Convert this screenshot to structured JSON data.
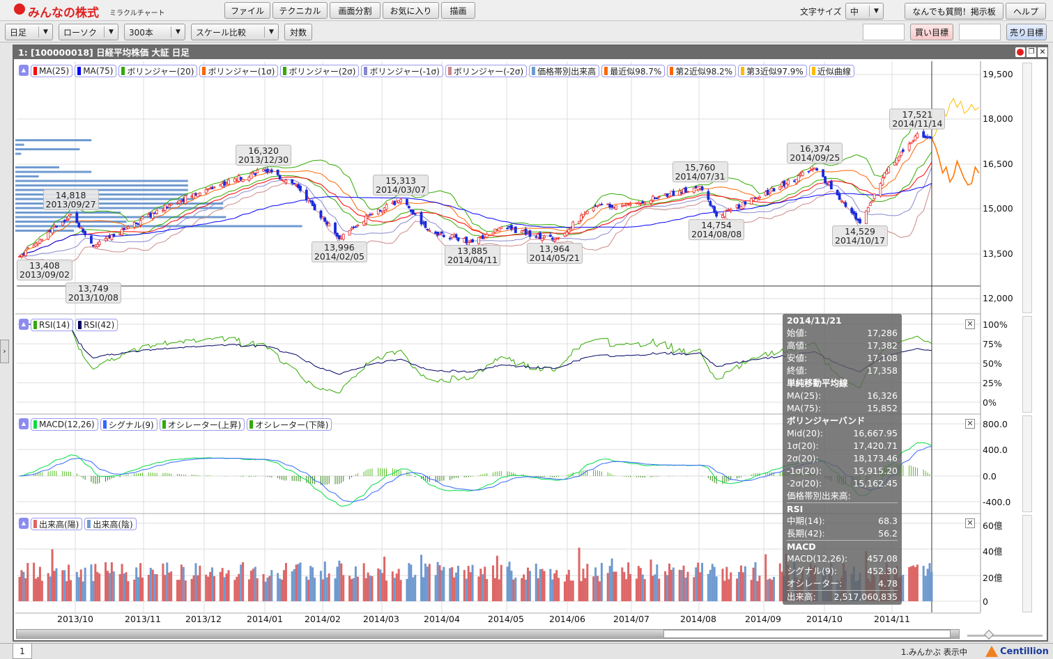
{
  "app": {
    "logo": "みんなの株式",
    "logo_sub": "ミラクルチャート"
  },
  "menu": [
    "ファイル",
    "テクニカル",
    "画面分割",
    "お気に入り",
    "描画"
  ],
  "font_size": {
    "label": "文字サイズ",
    "value": "中"
  },
  "top_right_buttons": [
    "なんでも質問！掲示板",
    "ヘルプ"
  ],
  "toolbar": {
    "period": "日足",
    "chart_type": "ローソク",
    "bars": "300本",
    "scale": "スケール比較",
    "log_button": "対数",
    "buy_target_input": "",
    "buy_target": "買い目標",
    "sell_target_input": "",
    "sell_target": "売り目標"
  },
  "window": {
    "title": "1:  [100000018] 日経平均株価 大証 日足"
  },
  "legends": {
    "price": [
      {
        "label": "MA(25)",
        "color": "#ff0000"
      },
      {
        "label": "MA(75)",
        "color": "#0000ff"
      },
      {
        "label": "ボリンジャー(20)",
        "color": "#33aa00"
      },
      {
        "label": "ボリンジャー(1σ)",
        "color": "#ff6600"
      },
      {
        "label": "ボリンジャー(2σ)",
        "color": "#33aa00"
      },
      {
        "label": "ボリンジャー(-1σ)",
        "color": "#8888cc"
      },
      {
        "label": "ボリンジャー(-2σ)",
        "color": "#cc8888"
      },
      {
        "label": "価格帯別出来高",
        "color": "#6f9ad0"
      },
      {
        "label": "最近似98.7%",
        "color": "#ff6600"
      },
      {
        "label": "第2近似98.2%",
        "color": "#ff6600"
      },
      {
        "label": "第3近似97.9%",
        "color": "#ffbb00"
      },
      {
        "label": "近似曲線",
        "color": "#ffbb00"
      }
    ],
    "rsi": [
      {
        "label": "RSI(14)",
        "color": "#33aa00"
      },
      {
        "label": "RSI(42)",
        "color": "#000066"
      }
    ],
    "macd": [
      {
        "label": "MACD(12,26)",
        "color": "#00dd44"
      },
      {
        "label": "シグナル(9)",
        "color": "#3366ff"
      },
      {
        "label": "オシレーター(上昇)",
        "color": "#33aa00"
      },
      {
        "label": "オシレーター(下降)",
        "color": "#33aa00"
      }
    ],
    "volume": [
      {
        "label": "出来高(陽)",
        "color": "#dd6666"
      },
      {
        "label": "出来高(陰)",
        "color": "#6f9ad0"
      }
    ]
  },
  "axes": {
    "price": [
      "19,500",
      "18,000",
      "16,500",
      "15,000",
      "13,500",
      "12,000"
    ],
    "rsi": [
      "100%",
      "75%",
      "50%",
      "25%",
      "0%"
    ],
    "macd": [
      "800.0",
      "400.0",
      "0.0",
      "-400.0"
    ],
    "volume": [
      "60億",
      "40億",
      "20億",
      "0"
    ],
    "x": [
      "2013/10",
      "2013/11",
      "2013/12",
      "2014/01",
      "2014/02",
      "2014/03",
      "2014/04",
      "2014/05",
      "2014/06",
      "2014/07",
      "2014/08",
      "2014/09",
      "2014/10",
      "2014/11"
    ]
  },
  "chart_data": {
    "type": "candlestick",
    "date_range": [
      "2013/09/02",
      "2014/11/21"
    ],
    "price_ylim": [
      12000,
      19500
    ],
    "close_anchors": [
      [
        "2013-09-02",
        13408
      ],
      [
        "2013-09-27",
        14818
      ],
      [
        "2013-10-08",
        13749
      ],
      [
        "2013-10-25",
        14400
      ],
      [
        "2013-11-15",
        15165
      ],
      [
        "2013-12-02",
        15650
      ],
      [
        "2013-12-30",
        16320
      ],
      [
        "2014-01-15",
        15800
      ],
      [
        "2014-02-05",
        13996
      ],
      [
        "2014-02-20",
        14800
      ],
      [
        "2014-03-07",
        15313
      ],
      [
        "2014-03-20",
        14300
      ],
      [
        "2014-04-11",
        13885
      ],
      [
        "2014-04-25",
        14400
      ],
      [
        "2014-05-21",
        13964
      ],
      [
        "2014-06-10",
        15100
      ],
      [
        "2014-06-30",
        15200
      ],
      [
        "2014-07-31",
        15760
      ],
      [
        "2014-08-08",
        14754
      ],
      [
        "2014-08-29",
        15400
      ],
      [
        "2014-09-25",
        16374
      ],
      [
        "2014-10-17",
        14529
      ],
      [
        "2014-10-31",
        16400
      ],
      [
        "2014-11-14",
        17521
      ],
      [
        "2014-11-21",
        17358
      ]
    ],
    "annotations": [
      {
        "price": "13,408",
        "date": "2013/09/02",
        "pos": "below"
      },
      {
        "price": "14,818",
        "date": "2013/09/27",
        "pos": "above"
      },
      {
        "price": "13,749",
        "date": "2013/10/08",
        "pos": "below"
      },
      {
        "price": "16,320",
        "date": "2013/12/30",
        "pos": "above"
      },
      {
        "price": "13,996",
        "date": "2014/02/05",
        "pos": "below"
      },
      {
        "price": "15,313",
        "date": "2014/03/07",
        "pos": "above"
      },
      {
        "price": "13,885",
        "date": "2014/04/11",
        "pos": "below"
      },
      {
        "price": "13,964",
        "date": "2014/05/21",
        "pos": "below"
      },
      {
        "price": "15,760",
        "date": "2014/07/31",
        "pos": "above"
      },
      {
        "price": "14,754",
        "date": "2014/08/08",
        "pos": "below"
      },
      {
        "price": "16,374",
        "date": "2014/09/25",
        "pos": "above"
      },
      {
        "price": "14,529",
        "date": "2014/10/17",
        "pos": "below"
      },
      {
        "price": "17,521",
        "date": "2014/11/14",
        "pos": "above"
      }
    ],
    "forecast_best": [
      17358,
      17100,
      16700,
      16200,
      16400,
      15900,
      16100,
      16600,
      16300,
      16000,
      15800,
      15850,
      16400,
      16200
    ],
    "forecast_third": [
      17358,
      17500,
      17900,
      18300,
      18100,
      18500,
      18700,
      18400,
      18600,
      18200,
      18300,
      18500,
      18300,
      18400
    ],
    "volume_by_price": [
      0.26,
      0.03,
      0.22,
      0.02,
      0,
      0,
      0.15,
      0.26,
      0.08,
      0.59,
      0.59,
      0.59,
      0.59,
      0.61,
      0.71,
      0.71,
      0.36,
      0.72,
      0.38,
      0.98,
      0.2
    ]
  },
  "tooltip": {
    "date": "2014/11/21",
    "ohlc": [
      [
        "始値:",
        "17,286"
      ],
      [
        "高値:",
        "17,382"
      ],
      [
        "安値:",
        "17,108"
      ],
      [
        "終値:",
        "17,358"
      ]
    ],
    "ma_title": "単純移動平均線",
    "ma": [
      [
        "MA(25):",
        "16,326"
      ],
      [
        "MA(75):",
        "15,852"
      ]
    ],
    "bb_title": "ボリンジャーバンド",
    "bb": [
      [
        "Mid(20):",
        "16,667.95"
      ],
      [
        "1σ(20):",
        "17,420.71"
      ],
      [
        "2σ(20):",
        "18,173.46"
      ],
      [
        "-1σ(20):",
        "15,915.20"
      ],
      [
        "-2σ(20):",
        "15,162.45"
      ]
    ],
    "vbp": "価格帯別出来高:",
    "rsi_title": "RSI",
    "rsi": [
      [
        "中期(14):",
        "68.3"
      ],
      [
        "長期(42):",
        "56.2"
      ]
    ],
    "macd_title": "MACD",
    "macd": [
      [
        "MACD(12,26):",
        "457.08"
      ],
      [
        "シグナル(9):",
        "452.30"
      ],
      [
        "オシレーター:",
        "4.78"
      ]
    ],
    "volume": [
      "出来高:",
      "2,517,060,835"
    ]
  },
  "status": {
    "tab": "1",
    "text": "1.みんかぶ 表示中",
    "brand": "Centillion"
  }
}
